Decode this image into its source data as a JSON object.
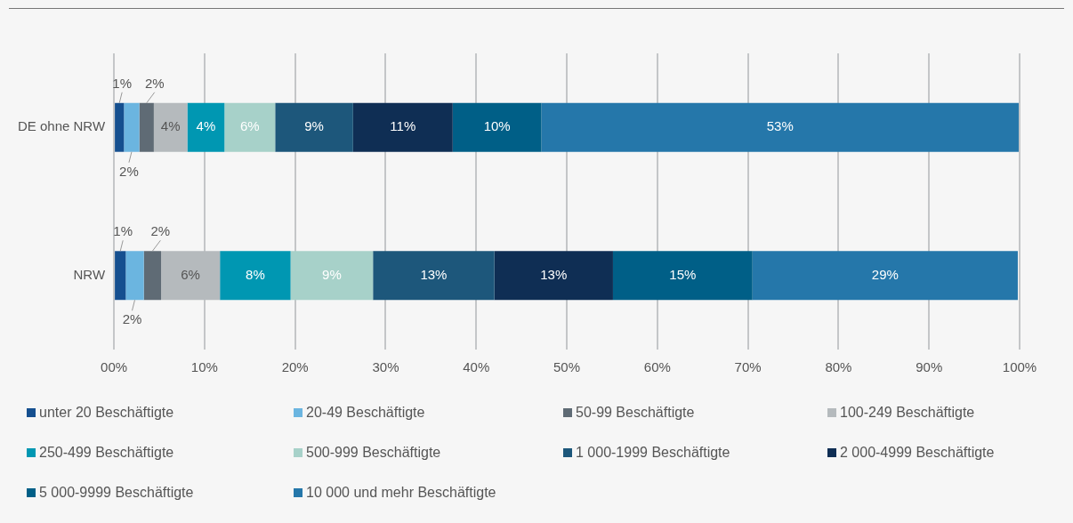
{
  "chart_data": {
    "type": "bar",
    "orientation": "horizontal",
    "stacked": true,
    "categories": [
      "DE ohne NRW",
      "NRW"
    ],
    "series": [
      {
        "name": "unter 20 Beschäftigte",
        "color": "#154f8f",
        "values": [
          1.1,
          1.3
        ],
        "value_labels": [
          "1%",
          "1%"
        ]
      },
      {
        "name": "20-49 Beschäftigte",
        "color": "#6bb5e0",
        "values": [
          1.7,
          2.0
        ],
        "value_labels": [
          "2%",
          "2%"
        ]
      },
      {
        "name": "50-99 Beschäftigte",
        "color": "#5f6b75",
        "values": [
          1.6,
          1.9
        ],
        "value_labels": [
          "2%",
          "2%"
        ]
      },
      {
        "name": "100-249 Beschäftigte",
        "color": "#b5babd",
        "values": [
          3.7,
          6.5
        ],
        "value_labels": [
          "4%",
          "6%"
        ]
      },
      {
        "name": "250-499 Beschäftigte",
        "color": "#0097b2",
        "values": [
          4.1,
          7.8
        ],
        "value_labels": [
          "4%",
          "8%"
        ]
      },
      {
        "name": "500-999 Beschäftigte",
        "color": "#a7d1c9",
        "values": [
          5.6,
          9.1
        ],
        "value_labels": [
          "6%",
          "9%"
        ]
      },
      {
        "name": "1 000-1999 Beschäftigte",
        "color": "#1d577b",
        "values": [
          8.6,
          13.4
        ],
        "value_labels": [
          "9%",
          "13%"
        ]
      },
      {
        "name": "2 000-4999 Beschäftigte",
        "color": "#0f2e54",
        "values": [
          11.0,
          13.1
        ],
        "value_labels": [
          "11%",
          "13%"
        ]
      },
      {
        "name": "5 000-9999 Beschäftigte",
        "color": "#005f87",
        "values": [
          9.8,
          15.4
        ],
        "value_labels": [
          "10%",
          "15%"
        ]
      },
      {
        "name": "10 000 und mehr Beschäftigte",
        "color": "#2577aa",
        "values": [
          52.7,
          29.3
        ],
        "value_labels": [
          "53%",
          "29%"
        ]
      }
    ],
    "xlim": [
      0,
      100
    ],
    "xticks": [
      {
        "value": 0,
        "label": "00%"
      },
      {
        "value": 10,
        "label": "10%"
      },
      {
        "value": 20,
        "label": "20%"
      },
      {
        "value": 30,
        "label": "30%"
      },
      {
        "value": 40,
        "label": "40%"
      },
      {
        "value": 50,
        "label": "50%"
      },
      {
        "value": 60,
        "label": "60%"
      },
      {
        "value": 70,
        "label": "70%"
      },
      {
        "value": 80,
        "label": "80%"
      },
      {
        "value": 90,
        "label": "90%"
      },
      {
        "value": 100,
        "label": "100%"
      }
    ],
    "grid": "x",
    "legend": "bottom"
  }
}
